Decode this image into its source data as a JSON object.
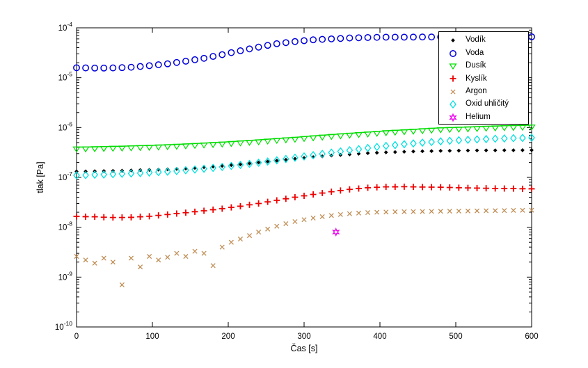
{
  "figure": {
    "background": "#ffffff",
    "frame_color": "#000000"
  },
  "chart_data": {
    "type": "scatter",
    "title": "",
    "xlabel": "Čas [s]",
    "ylabel": "tlak [Pa]",
    "xlim": [
      0,
      600
    ],
    "x_ticks": [
      0,
      100,
      200,
      300,
      400,
      500,
      600
    ],
    "y_scale": "log",
    "y_decade_exponents": [
      -4,
      -5,
      -6,
      -7,
      -8,
      -9,
      -10
    ],
    "ylim": [
      1e-10,
      0.0001
    ],
    "grid": false,
    "legend_position": "top-right",
    "sampling": {
      "t_start": 0,
      "t_step": 12,
      "unit": "s"
    },
    "series": [
      {
        "name": "Vodík",
        "marker": "filled-diamond",
        "color": "#000000",
        "values": [
          1.32e-07,
          1.32e-07,
          1.33e-07,
          1.34e-07,
          1.35e-07,
          1.36e-07,
          1.38e-07,
          1.4e-07,
          1.41e-07,
          1.43e-07,
          1.45e-07,
          1.48e-07,
          1.51e-07,
          1.55e-07,
          1.6e-07,
          1.65e-07,
          1.7e-07,
          1.76e-07,
          1.82e-07,
          1.9e-07,
          1.99e-07,
          2.08e-07,
          2.17e-07,
          2.26e-07,
          2.36e-07,
          2.46e-07,
          2.55e-07,
          2.65e-07,
          2.75e-07,
          2.82e-07,
          2.9e-07,
          2.98e-07,
          3.07e-07,
          3.12e-07,
          3.18e-07,
          3.22e-07,
          3.27e-07,
          3.31e-07,
          3.35e-07,
          3.37e-07,
          3.4e-07,
          3.42e-07,
          3.44e-07,
          3.46e-07,
          3.47e-07,
          3.48e-07,
          3.49e-07,
          3.5e-07,
          3.5e-07,
          3.51e-07,
          3.52e-07
        ]
      },
      {
        "name": "Voda",
        "marker": "open-circle",
        "color": "#0000dd",
        "values": [
          1.58e-05,
          1.57e-05,
          1.56e-05,
          1.56e-05,
          1.57e-05,
          1.59e-05,
          1.62e-05,
          1.68e-05,
          1.74e-05,
          1.82e-05,
          1.9e-05,
          2.02e-05,
          2.14e-05,
          2.29e-05,
          2.45e-05,
          2.67e-05,
          2.9e-05,
          3.18e-05,
          3.47e-05,
          3.78e-05,
          4.1e-05,
          4.45e-05,
          4.8e-05,
          5.05e-05,
          5.3e-05,
          5.52e-05,
          5.75e-05,
          5.88e-05,
          6e-05,
          6.12e-05,
          6.25e-05,
          6.32e-05,
          6.4e-05,
          6.45e-05,
          6.5e-05,
          6.5e-05,
          6.5e-05,
          6.52e-05,
          6.55e-05,
          6.55e-05,
          6.55e-05,
          6.58e-05,
          6.6e-05,
          6.6e-05,
          6.6e-05,
          6.6e-05,
          6.6e-05,
          6.6e-05,
          6.6e-05,
          6.6e-05,
          6.6e-05
        ]
      },
      {
        "name": "Dusík",
        "marker": "triangle-down",
        "color": "#00dd00",
        "line": true,
        "values": [
          3.7e-07,
          3.72e-07,
          3.75e-07,
          3.78e-07,
          3.82e-07,
          3.86e-07,
          3.9e-07,
          3.95e-07,
          4e-07,
          4.06e-07,
          4.12e-07,
          4.19e-07,
          4.27e-07,
          4.36e-07,
          4.45e-07,
          4.55e-07,
          4.65e-07,
          4.77e-07,
          4.9e-07,
          5.03e-07,
          5.16e-07,
          5.33e-07,
          5.5e-07,
          5.65e-07,
          5.8e-07,
          6e-07,
          6.2e-07,
          6.4e-07,
          6.6e-07,
          6.8e-07,
          7e-07,
          7.2e-07,
          7.4e-07,
          7.62e-07,
          7.85e-07,
          8.02e-07,
          8.2e-07,
          8.4e-07,
          8.6e-07,
          8.8e-07,
          9e-07,
          9.12e-07,
          9.25e-07,
          9.37e-07,
          9.5e-07,
          9.65e-07,
          9.8e-07,
          9.9e-07,
          1e-06,
          1.01e-06,
          1.02e-06
        ]
      },
      {
        "name": "Kyslík",
        "marker": "plus",
        "color": "#ee0000",
        "values": [
          1.65e-08,
          1.63e-08,
          1.62e-08,
          1.59e-08,
          1.57e-08,
          1.57e-08,
          1.58e-08,
          1.62e-08,
          1.66e-08,
          1.73e-08,
          1.8e-08,
          1.88e-08,
          1.96e-08,
          2.05e-08,
          2.14e-08,
          2.25e-08,
          2.36e-08,
          2.5e-08,
          2.64e-08,
          2.82e-08,
          3e-08,
          3.23e-08,
          3.46e-08,
          3.73e-08,
          4e-08,
          4.27e-08,
          4.55e-08,
          4.85e-08,
          5.16e-08,
          5.45e-08,
          5.75e-08,
          5.97e-08,
          6.2e-08,
          6.32e-08,
          6.45e-08,
          6.47e-08,
          6.5e-08,
          6.45e-08,
          6.4e-08,
          6.37e-08,
          6.35e-08,
          6.27e-08,
          6.2e-08,
          6.15e-08,
          6.1e-08,
          6.05e-08,
          6e-08,
          5.97e-08,
          5.95e-08,
          5.92e-08,
          5.9e-08
        ]
      },
      {
        "name": "Argon",
        "marker": "x",
        "color": "#c08e55",
        "values": [
          2.6e-09,
          2.2e-09,
          1.9e-09,
          2.4e-09,
          2e-09,
          7e-10,
          2.4e-09,
          1.6e-09,
          2.6e-09,
          2.2e-09,
          2.5e-09,
          3e-09,
          2.6e-09,
          3.3e-09,
          3e-09,
          1.7e-09,
          4e-09,
          5e-09,
          5.8e-09,
          6.8e-09,
          8e-09,
          9.2e-09,
          1.05e-08,
          1.18e-08,
          1.3e-08,
          1.42e-08,
          1.53e-08,
          1.63e-08,
          1.72e-08,
          1.8e-08,
          1.87e-08,
          1.92e-08,
          1.97e-08,
          2e-08,
          2.02e-08,
          2.04e-08,
          2.05e-08,
          2.06e-08,
          2.07e-08,
          2.08e-08,
          2.09e-08,
          2.1e-08,
          2.11e-08,
          2.12e-08,
          2.13e-08,
          2.14e-08,
          2.15e-08,
          2.16e-08,
          2.18e-08,
          2.19e-08,
          2.2e-08
        ]
      },
      {
        "name": "Oxid uhličitý",
        "marker": "open-diamond",
        "color": "#00e0e0",
        "values": [
          1.1e-07,
          1.11e-07,
          1.13e-07,
          1.14e-07,
          1.16e-07,
          1.18e-07,
          1.2e-07,
          1.22e-07,
          1.25e-07,
          1.28e-07,
          1.3e-07,
          1.34e-07,
          1.39e-07,
          1.44e-07,
          1.49e-07,
          1.55e-07,
          1.62e-07,
          1.7e-07,
          1.78e-07,
          1.87e-07,
          1.97e-07,
          2.08e-07,
          2.2e-07,
          2.34e-07,
          2.48e-07,
          2.63e-07,
          2.79e-07,
          2.96e-07,
          3.14e-07,
          3.32e-07,
          3.5e-07,
          3.69e-07,
          3.89e-07,
          4.08e-07,
          4.28e-07,
          4.45e-07,
          4.63e-07,
          4.8e-07,
          4.98e-07,
          5.13e-07,
          5.28e-07,
          5.42e-07,
          5.56e-07,
          5.67e-07,
          5.78e-07,
          5.87e-07,
          5.97e-07,
          6.04e-07,
          6.12e-07,
          6.18e-07,
          6.25e-07
        ]
      },
      {
        "name": "Helium",
        "marker": "hexagram",
        "color": "#ee00ee",
        "points": [
          [
            342,
            8e-09
          ]
        ]
      }
    ]
  }
}
